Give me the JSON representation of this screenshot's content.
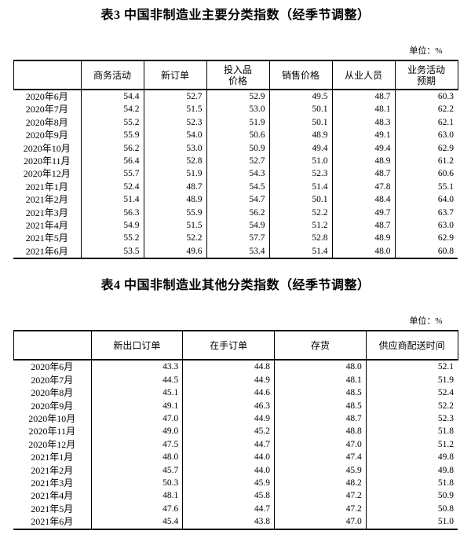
{
  "page": {
    "background_color": "#ffffff",
    "text_color": "#000000",
    "border_color": "#000000"
  },
  "table3": {
    "title": "表3 中国非制造业主要分类指数（经季节调整）",
    "unit_label": "单位：%",
    "columns": [
      "商务活动",
      "新订单",
      "投入品\n价格",
      "销售价格",
      "从业人员",
      "业务活动\n预期"
    ],
    "rows": [
      {
        "label": "2020年6月",
        "values": [
          "54.4",
          "52.7",
          "52.9",
          "49.5",
          "48.7",
          "60.3"
        ]
      },
      {
        "label": "2020年7月",
        "values": [
          "54.2",
          "51.5",
          "53.0",
          "50.1",
          "48.1",
          "62.2"
        ]
      },
      {
        "label": "2020年8月",
        "values": [
          "55.2",
          "52.3",
          "51.9",
          "50.1",
          "48.3",
          "62.1"
        ]
      },
      {
        "label": "2020年9月",
        "values": [
          "55.9",
          "54.0",
          "50.6",
          "48.9",
          "49.1",
          "63.0"
        ]
      },
      {
        "label": "2020年10月",
        "values": [
          "56.2",
          "53.0",
          "50.9",
          "49.4",
          "49.4",
          "62.9"
        ]
      },
      {
        "label": "2020年11月",
        "values": [
          "56.4",
          "52.8",
          "52.7",
          "51.0",
          "48.9",
          "61.2"
        ]
      },
      {
        "label": "2020年12月",
        "values": [
          "55.7",
          "51.9",
          "54.3",
          "52.3",
          "48.7",
          "60.6"
        ]
      },
      {
        "label": "2021年1月",
        "values": [
          "52.4",
          "48.7",
          "54.5",
          "51.4",
          "47.8",
          "55.1"
        ]
      },
      {
        "label": "2021年2月",
        "values": [
          "51.4",
          "48.9",
          "54.7",
          "50.1",
          "48.4",
          "64.0"
        ]
      },
      {
        "label": "2021年3月",
        "values": [
          "56.3",
          "55.9",
          "56.2",
          "52.2",
          "49.7",
          "63.7"
        ]
      },
      {
        "label": "2021年4月",
        "values": [
          "54.9",
          "51.5",
          "54.9",
          "51.2",
          "48.7",
          "63.0"
        ]
      },
      {
        "label": "2021年5月",
        "values": [
          "55.2",
          "52.2",
          "57.7",
          "52.8",
          "48.9",
          "62.9"
        ]
      },
      {
        "label": "2021年6月",
        "values": [
          "53.5",
          "49.6",
          "53.4",
          "51.4",
          "48.0",
          "60.8"
        ]
      }
    ]
  },
  "table4": {
    "title": "表4 中国非制造业其他分类指数（经季节调整）",
    "unit_label": "单位：%",
    "columns": [
      "新出口订单",
      "在手订单",
      "存货",
      "供应商配送时间"
    ],
    "rows": [
      {
        "label": "2020年6月",
        "values": [
          "43.3",
          "44.8",
          "48.0",
          "52.1"
        ]
      },
      {
        "label": "2020年7月",
        "values": [
          "44.5",
          "44.9",
          "48.1",
          "51.9"
        ]
      },
      {
        "label": "2020年8月",
        "values": [
          "45.1",
          "44.6",
          "48.5",
          "52.4"
        ]
      },
      {
        "label": "2020年9月",
        "values": [
          "49.1",
          "46.3",
          "48.5",
          "52.2"
        ]
      },
      {
        "label": "2020年10月",
        "values": [
          "47.0",
          "44.9",
          "48.7",
          "52.3"
        ]
      },
      {
        "label": "2020年11月",
        "values": [
          "49.0",
          "45.2",
          "48.8",
          "51.8"
        ]
      },
      {
        "label": "2020年12月",
        "values": [
          "47.5",
          "44.7",
          "47.0",
          "51.2"
        ]
      },
      {
        "label": "2021年1月",
        "values": [
          "48.0",
          "44.0",
          "47.4",
          "49.8"
        ]
      },
      {
        "label": "2021年2月",
        "values": [
          "45.7",
          "44.0",
          "45.9",
          "49.8"
        ]
      },
      {
        "label": "2021年3月",
        "values": [
          "50.3",
          "45.9",
          "48.2",
          "51.8"
        ]
      },
      {
        "label": "2021年4月",
        "values": [
          "48.1",
          "45.8",
          "47.2",
          "50.9"
        ]
      },
      {
        "label": "2021年5月",
        "values": [
          "47.6",
          "44.7",
          "47.2",
          "50.8"
        ]
      },
      {
        "label": "2021年6月",
        "values": [
          "45.4",
          "43.8",
          "47.0",
          "51.0"
        ]
      }
    ]
  }
}
